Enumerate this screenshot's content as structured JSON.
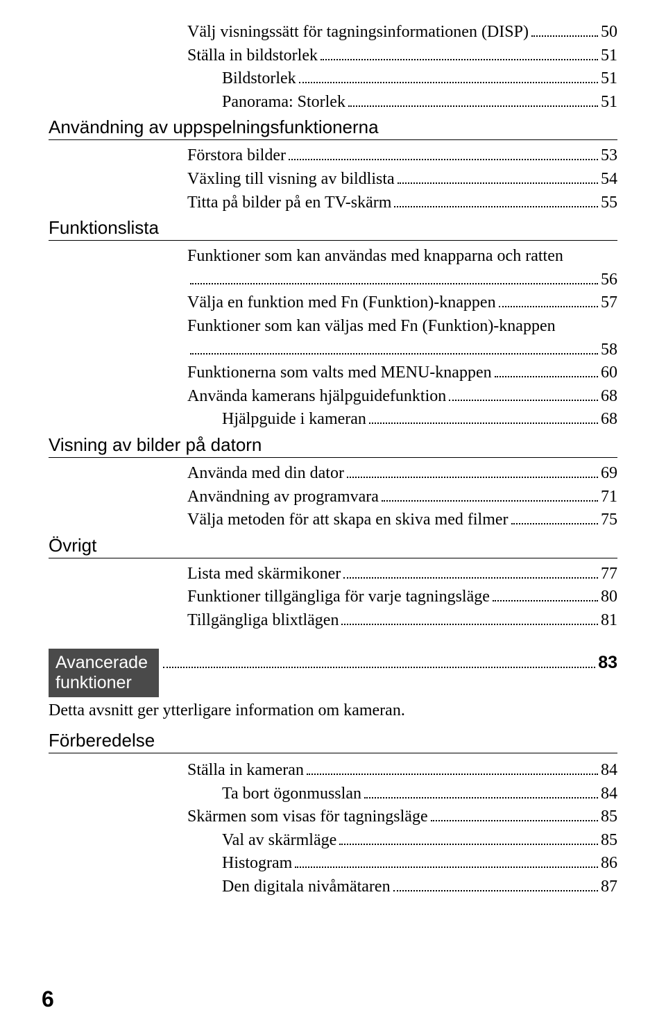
{
  "group1": [
    {
      "label": "Välj visningssätt för tagningsinformationen (DISP)",
      "page": "50",
      "indent": 1
    },
    {
      "label": "Ställa in bildstorlek",
      "page": "51",
      "indent": 1
    },
    {
      "label": "Bildstorlek",
      "page": "51",
      "indent": 2
    },
    {
      "label": "Panorama: Storlek",
      "page": "51",
      "indent": 2
    }
  ],
  "section1_title": "Användning av uppspelningsfunktionerna",
  "group2": [
    {
      "label": "Förstora bilder",
      "page": "53",
      "indent": 1
    },
    {
      "label": "Växling till visning av bildlista",
      "page": "54",
      "indent": 1
    },
    {
      "label": "Titta på bilder på en TV-skärm",
      "page": "55",
      "indent": 1
    }
  ],
  "section2_title": "Funktionslista",
  "group3": [
    {
      "label_pre": "Funktioner som kan användas med knapparna och ratten",
      "page": "56",
      "indent": 1,
      "wrap": true
    },
    {
      "label": "Välja en funktion med Fn (Funktion)-knappen",
      "page": "57",
      "indent": 1
    },
    {
      "label_pre": "Funktioner som kan väljas med Fn (Funktion)-knappen",
      "page": "58",
      "indent": 1,
      "wrap": true
    },
    {
      "label": "Funktionerna som valts med MENU-knappen",
      "page": "60",
      "indent": 1
    },
    {
      "label": "Använda kamerans hjälpguidefunktion",
      "page": "68",
      "indent": 1
    },
    {
      "label": "Hjälpguide i kameran",
      "page": "68",
      "indent": 2
    }
  ],
  "section3_title": "Visning av bilder på datorn",
  "group4": [
    {
      "label": "Använda med din dator",
      "page": "69",
      "indent": 1
    },
    {
      "label": "Användning av programvara",
      "page": "71",
      "indent": 1
    },
    {
      "label": "Välja metoden för att skapa en skiva med filmer",
      "page": "75",
      "indent": 1
    }
  ],
  "section4_title": "Övrigt",
  "group5": [
    {
      "label": "Lista med skärmikoner",
      "page": "77",
      "indent": 1
    },
    {
      "label": "Funktioner tillgängliga för varje tagningsläge",
      "page": "80",
      "indent": 1
    },
    {
      "label": "Tillgängliga blixtlägen",
      "page": "81",
      "indent": 1
    }
  ],
  "adv_box_line1": "Avancerade",
  "adv_box_line2": "funktioner",
  "adv_page": "83",
  "adv_desc": "Detta avsnitt ger ytterligare information om kameran.",
  "section5_title": "Förberedelse",
  "group6": [
    {
      "label": "Ställa in kameran",
      "page": "84",
      "indent": 1
    },
    {
      "label": "Ta bort ögonmusslan",
      "page": "84",
      "indent": 2
    },
    {
      "label": "Skärmen som visas för tagningsläge",
      "page": "85",
      "indent": 1
    },
    {
      "label": "Val av skärmläge",
      "page": "85",
      "indent": 2
    },
    {
      "label": "Histogram",
      "page": "86",
      "indent": 2
    },
    {
      "label": "Den digitala nivåmätaren",
      "page": "87",
      "indent": 2
    }
  ],
  "page_number": "6"
}
